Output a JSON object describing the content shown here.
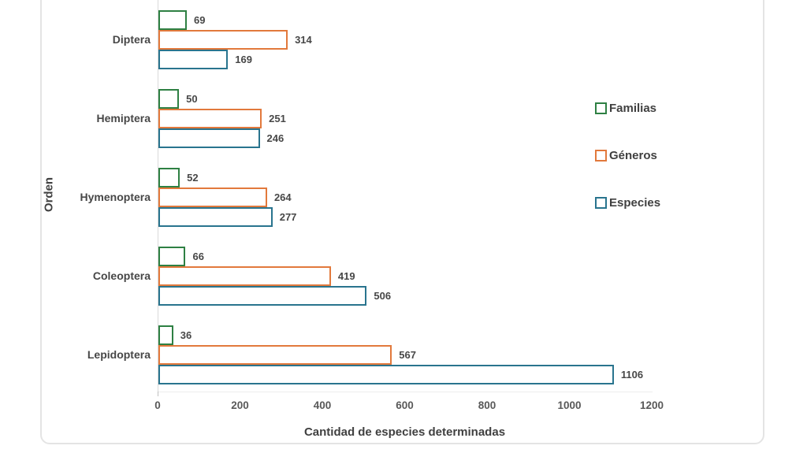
{
  "chart_data": {
    "type": "bar",
    "orientation": "horizontal",
    "title": "",
    "xlabel": "Cantidad de especies determinadas",
    "ylabel": "Orden",
    "categories": [
      "Diptera",
      "Hemiptera",
      "Hymenoptera",
      "Coleoptera",
      "Lepidoptera"
    ],
    "series": [
      {
        "name": "Familias",
        "color": "#2e8043",
        "values": [
          69,
          50,
          52,
          66,
          36
        ]
      },
      {
        "name": "Géneros",
        "color": "#e2793c",
        "values": [
          314,
          251,
          264,
          419,
          567
        ]
      },
      {
        "name": "Especies",
        "color": "#29748e",
        "values": [
          169,
          246,
          277,
          506,
          1106
        ]
      }
    ],
    "xlim": [
      0,
      1200
    ],
    "xticks": [
      0,
      200,
      400,
      600,
      800,
      1000,
      1200
    ],
    "grid": false,
    "bar_fill": "#ffffff",
    "legend_position": "right",
    "text_color": "#474747"
  }
}
